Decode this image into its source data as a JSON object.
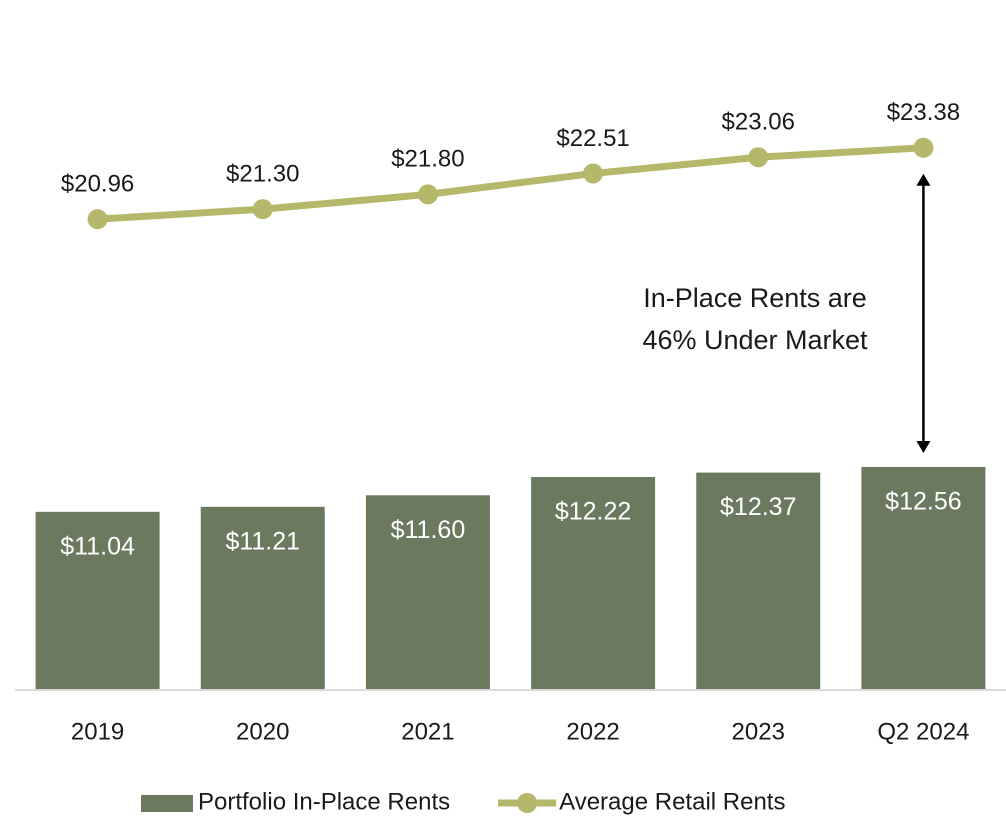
{
  "chart_data": {
    "type": "combo",
    "categories": [
      "2019",
      "2020",
      "2021",
      "2022",
      "2023",
      "Q2 2024"
    ],
    "series": [
      {
        "name": "Portfolio In-Place Rents",
        "type": "bar",
        "color": "#6b7a5e",
        "values": [
          11.04,
          11.21,
          11.6,
          12.22,
          12.37,
          12.56
        ],
        "value_labels": [
          "$11.04",
          "$11.21",
          "$11.60",
          "$12.22",
          "$12.37",
          "$12.56"
        ]
      },
      {
        "name": "Average Retail Rents",
        "type": "line",
        "color": "#b5b86a",
        "values": [
          20.96,
          21.3,
          21.8,
          22.51,
          23.06,
          23.38
        ],
        "value_labels": [
          "$20.96",
          "$21.30",
          "$21.80",
          "$22.51",
          "$23.06",
          "$23.38"
        ]
      }
    ],
    "ylim": [
      5,
      27
    ],
    "annotation": [
      "In-Place Rents are",
      "46% Under Market"
    ],
    "legend": "bottom"
  }
}
